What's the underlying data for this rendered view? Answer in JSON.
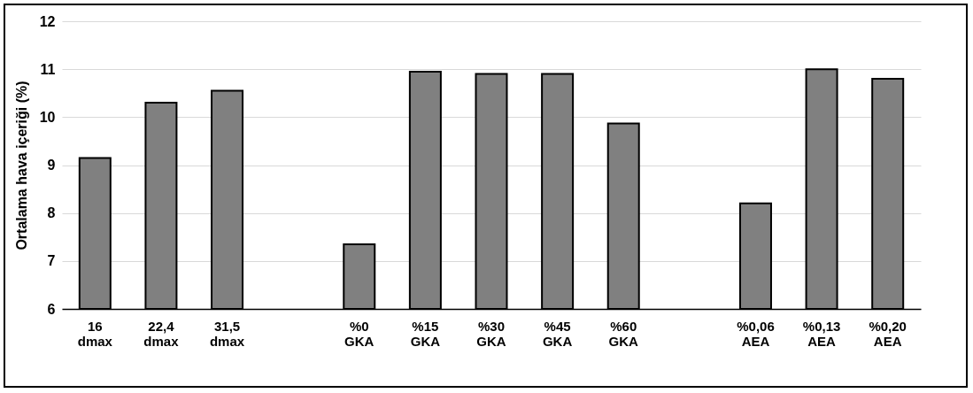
{
  "chart_data": {
    "type": "bar",
    "ylabel": "Ortalama hava içeriği (%)",
    "categories": [
      "16 dmax",
      "22,4 dmax",
      "31,5 dmax",
      null,
      "%0 GKA",
      "%15 GKA",
      "%30 GKA",
      "%45 GKA",
      "%60 GKA",
      null,
      "%0,06 AEA",
      "%0,13 AEA",
      "%0,20 AEA"
    ],
    "values": [
      9.15,
      10.3,
      10.55,
      null,
      7.35,
      10.95,
      10.9,
      10.9,
      9.87,
      null,
      8.2,
      11.0,
      10.8
    ],
    "color": "#808080",
    "ylim": [
      6,
      12
    ],
    "yticks": [
      6,
      7,
      8,
      9,
      10,
      11,
      12
    ],
    "grid": "y"
  }
}
